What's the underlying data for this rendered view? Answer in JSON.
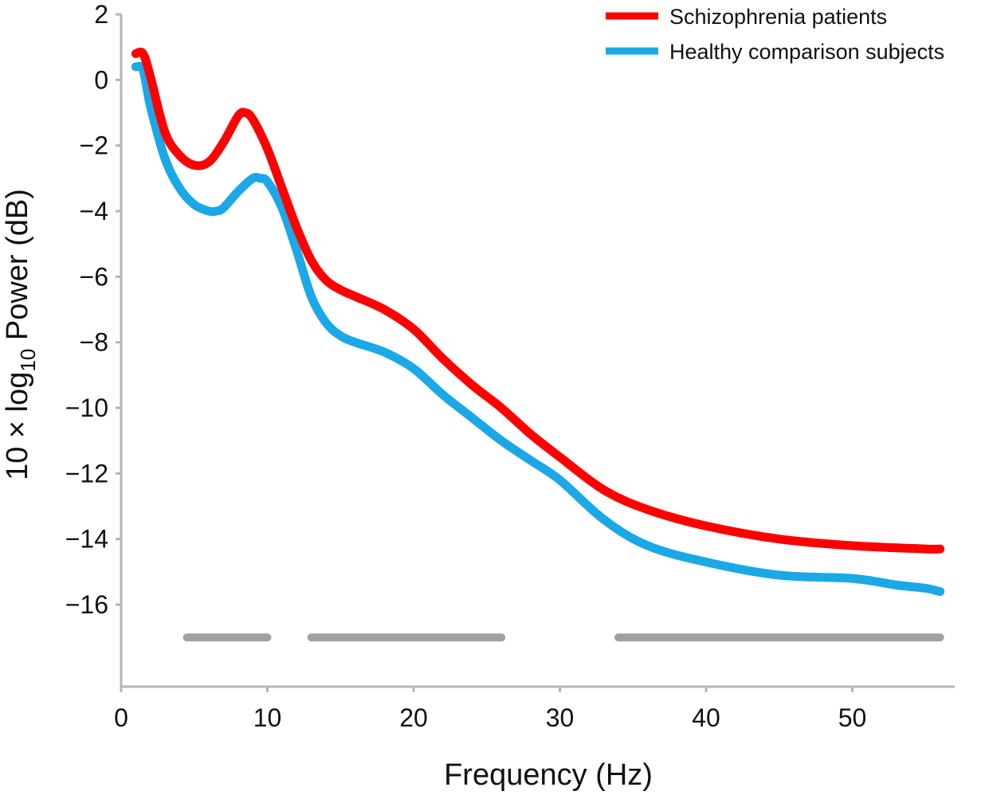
{
  "chart_data": {
    "type": "line",
    "title": "",
    "xlabel": "Frequency (Hz)",
    "ylabel_parts": {
      "prefix": "10 × log",
      "subscript": "10",
      "suffix": " Power (dB)"
    },
    "xlim": [
      0,
      57
    ],
    "ylim": [
      -18.5,
      2
    ],
    "xticks": [
      0,
      10,
      20,
      30,
      40,
      50
    ],
    "yticks": [
      2,
      0,
      -2,
      -4,
      -6,
      -8,
      -10,
      -12,
      -14,
      -16
    ],
    "ytick_labels": [
      "2",
      "0",
      "−2",
      "−4",
      "−6",
      "−8",
      "−10",
      "−12",
      "−14",
      "−16"
    ],
    "grid": false,
    "legend_position": "top-right",
    "series": [
      {
        "name": "Schizophrenia patients",
        "color": "#ff0000",
        "x": [
          1,
          1.5,
          2,
          3,
          4,
          5,
          6,
          7,
          8,
          8.5,
          9,
          10,
          11,
          12,
          13,
          14,
          15,
          16,
          18,
          20,
          22,
          24,
          26,
          28,
          30,
          33,
          36,
          40,
          45,
          50,
          55,
          56
        ],
        "y": [
          0.8,
          0.8,
          0.1,
          -1.6,
          -2.3,
          -2.6,
          -2.5,
          -1.9,
          -1.1,
          -1.0,
          -1.2,
          -2.1,
          -3.3,
          -4.5,
          -5.5,
          -6.1,
          -6.4,
          -6.6,
          -7.0,
          -7.6,
          -8.5,
          -9.3,
          -10.0,
          -10.8,
          -11.5,
          -12.5,
          -13.1,
          -13.6,
          -14.0,
          -14.2,
          -14.3,
          -14.3
        ]
      },
      {
        "name": "Healthy comparison subjects",
        "color": "#1aa8e6",
        "x": [
          1,
          1.5,
          2,
          3,
          4,
          5,
          6,
          6.5,
          7,
          8,
          9,
          9.5,
          10,
          11,
          12,
          13,
          14,
          15,
          16,
          18,
          20,
          22,
          24,
          26,
          28,
          30,
          33,
          36,
          40,
          45,
          50,
          53,
          55,
          56
        ],
        "y": [
          0.4,
          0.3,
          -0.8,
          -2.4,
          -3.3,
          -3.8,
          -4.0,
          -4.0,
          -3.9,
          -3.4,
          -3.0,
          -3.0,
          -3.1,
          -3.9,
          -5.2,
          -6.6,
          -7.4,
          -7.8,
          -8.0,
          -8.3,
          -8.8,
          -9.6,
          -10.3,
          -11.0,
          -11.6,
          -12.2,
          -13.4,
          -14.2,
          -14.7,
          -15.1,
          -15.2,
          -15.4,
          -15.5,
          -15.6
        ]
      }
    ],
    "significance_bars": {
      "color": "#a0a0a0",
      "y": -17,
      "ranges": [
        [
          4.5,
          10
        ],
        [
          13,
          26
        ],
        [
          34,
          56
        ]
      ]
    }
  }
}
